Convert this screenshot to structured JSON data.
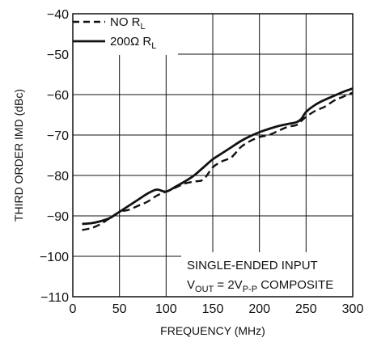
{
  "chart_data": {
    "type": "line",
    "title": "",
    "xlabel": "FREQUENCY (MHz)",
    "ylabel": "THIRD ORDER IMD (dBc)",
    "xlim": [
      0,
      300
    ],
    "ylim": [
      -110,
      -40
    ],
    "x_ticks": [
      "0",
      "50",
      "100",
      "150",
      "200",
      "250",
      "300"
    ],
    "y_ticks": [
      "−40",
      "−50",
      "−60",
      "−70",
      "−80",
      "−90",
      "−100",
      "−110"
    ],
    "grid": true,
    "legend_position": "top-left",
    "annotation": {
      "line1": "SINGLE-ENDED INPUT",
      "line2_prefix": "V",
      "line2_sub": "OUT",
      "line2_mid": " = 2V",
      "line2_sub2": "P-P",
      "line2_suffix": " COMPOSITE"
    },
    "series": [
      {
        "name": "NO R",
        "name_sub": "L",
        "style": "dashed",
        "color": "#111111",
        "x": [
          10,
          20,
          30,
          40,
          50,
          60,
          70,
          80,
          90,
          100,
          110,
          120,
          130,
          140,
          150,
          160,
          170,
          180,
          190,
          200,
          210,
          220,
          230,
          240,
          245,
          250,
          260,
          270,
          280,
          290,
          300
        ],
        "y": [
          -93.5,
          -93,
          -92,
          -90.5,
          -89,
          -88.5,
          -87.5,
          -86.5,
          -85,
          -84,
          -83,
          -82,
          -81.5,
          -81,
          -78,
          -76.5,
          -75.5,
          -73,
          -71.5,
          -70.5,
          -70,
          -69,
          -68,
          -67.5,
          -66.5,
          -65.5,
          -64,
          -63,
          -61.5,
          -60.5,
          -59.5
        ]
      },
      {
        "name": "200Ω R",
        "name_sub": "L",
        "style": "solid",
        "color": "#111111",
        "x": [
          10,
          20,
          30,
          40,
          50,
          60,
          70,
          80,
          90,
          100,
          110,
          120,
          130,
          140,
          150,
          160,
          170,
          180,
          190,
          200,
          210,
          220,
          230,
          240,
          245,
          250,
          260,
          270,
          280,
          290,
          300
        ],
        "y": [
          -92,
          -91.8,
          -91.3,
          -90.5,
          -89,
          -87.5,
          -86,
          -84.5,
          -83.5,
          -84,
          -82.8,
          -81.5,
          -80,
          -78,
          -76,
          -74.5,
          -73,
          -71.5,
          -70.3,
          -69.3,
          -68.5,
          -67.8,
          -67.3,
          -66.8,
          -66,
          -64.3,
          -62.5,
          -61.3,
          -60.3,
          -59.3,
          -58.5
        ]
      }
    ]
  }
}
